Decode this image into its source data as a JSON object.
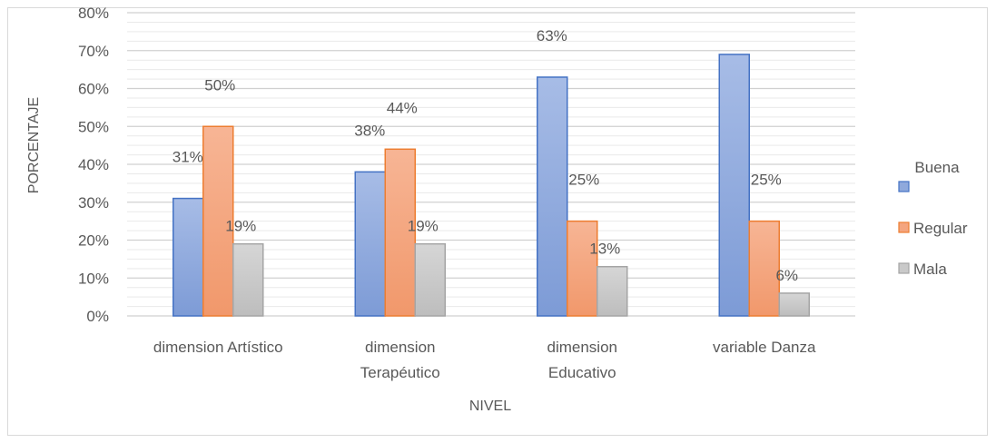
{
  "chart_data": {
    "type": "bar",
    "title": "",
    "xlabel": "NIVEL",
    "ylabel": "PORCENTAJE",
    "ylim": [
      0,
      80
    ],
    "yticks": [
      "0%",
      "10%",
      "20%",
      "30%",
      "40%",
      "50%",
      "60%",
      "70%",
      "80%"
    ],
    "categories": [
      [
        "dimension Artístico"
      ],
      [
        "dimension",
        "Terapéutico"
      ],
      [
        "dimension",
        "Educativo"
      ],
      [
        "variable Danza"
      ]
    ],
    "series": [
      {
        "name": "Buena",
        "values": [
          31,
          38,
          63,
          69
        ],
        "labels": [
          "31%",
          "38%",
          "63%",
          ""
        ]
      },
      {
        "name": "Regular",
        "values": [
          50,
          44,
          25,
          25
        ],
        "labels": [
          "50%",
          "44%",
          "25%",
          "25%"
        ]
      },
      {
        "name": "Mala",
        "values": [
          19,
          19,
          13,
          6
        ],
        "labels": [
          "19%",
          "19%",
          "13%",
          "6%"
        ]
      }
    ],
    "colors": {
      "Buena": "#8fa9dc",
      "Regular": "#f4a57f",
      "Mala": "#c9c9c9"
    },
    "grid": true,
    "legend": "right"
  }
}
